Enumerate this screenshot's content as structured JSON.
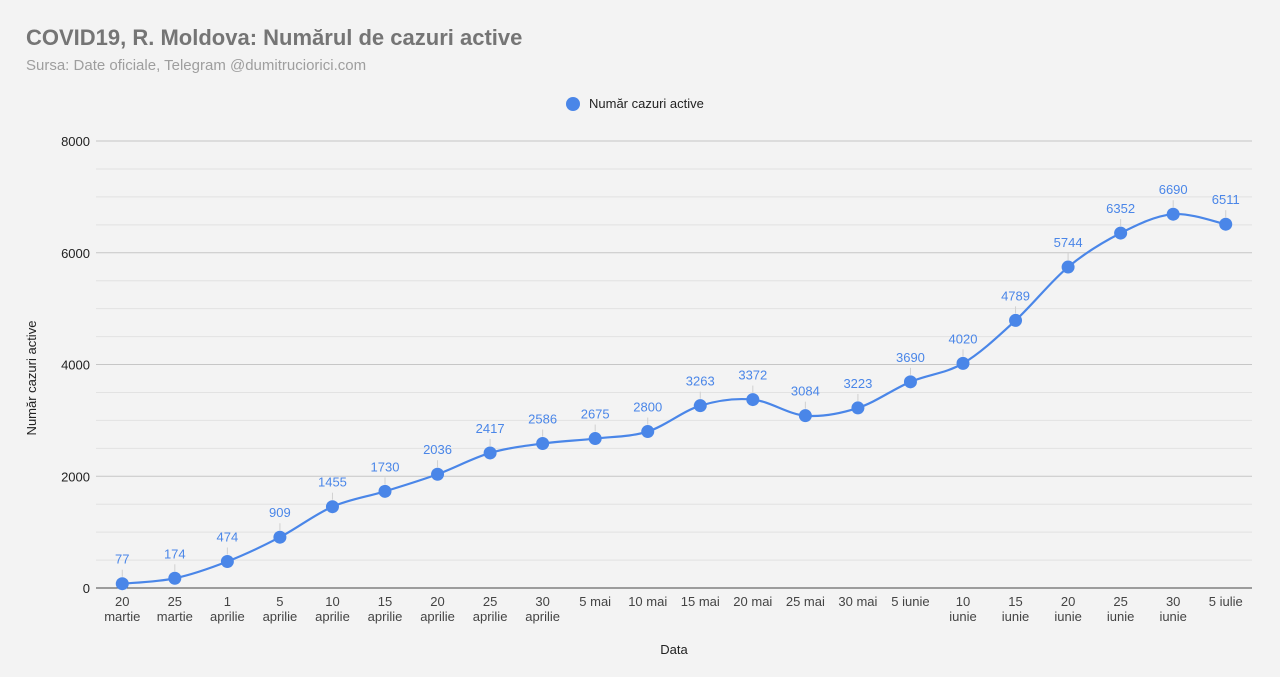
{
  "chart_data": {
    "type": "line",
    "title": "COVID19, R. Moldova: Numărul de cazuri active",
    "subtitle": "Sursa: Date oficiale, Telegram @dumitruciorici.com",
    "xlabel": "Data",
    "ylabel": "Număr cazuri active",
    "ylim": [
      0,
      8000
    ],
    "yticks": [
      "0",
      "2000",
      "4000",
      "6000",
      "8000"
    ],
    "grid": true,
    "legend_position": "top",
    "categories": [
      [
        "20",
        "martie"
      ],
      [
        "25",
        "martie"
      ],
      [
        "1",
        "aprilie"
      ],
      [
        "5",
        "aprilie"
      ],
      [
        "10",
        "aprilie"
      ],
      [
        "15",
        "aprilie"
      ],
      [
        "20",
        "aprilie"
      ],
      [
        "25",
        "aprilie"
      ],
      [
        "30",
        "aprilie"
      ],
      [
        "5 mai"
      ],
      [
        "10 mai"
      ],
      [
        "15 mai"
      ],
      [
        "20 mai"
      ],
      [
        "25 mai"
      ],
      [
        "30 mai"
      ],
      [
        "5 iunie"
      ],
      [
        "10",
        "iunie"
      ],
      [
        "15",
        "iunie"
      ],
      [
        "20",
        "iunie"
      ],
      [
        "25",
        "iunie"
      ],
      [
        "30",
        "iunie"
      ],
      [
        "5 iulie"
      ]
    ],
    "series": [
      {
        "name": "Număr cazuri active",
        "color": "#4a86e8",
        "values": [
          77,
          174,
          474,
          909,
          1455,
          1730,
          2036,
          2417,
          2586,
          2675,
          2800,
          3263,
          3372,
          3084,
          3223,
          3690,
          4020,
          4789,
          5744,
          6352,
          6690,
          6511
        ]
      }
    ]
  }
}
